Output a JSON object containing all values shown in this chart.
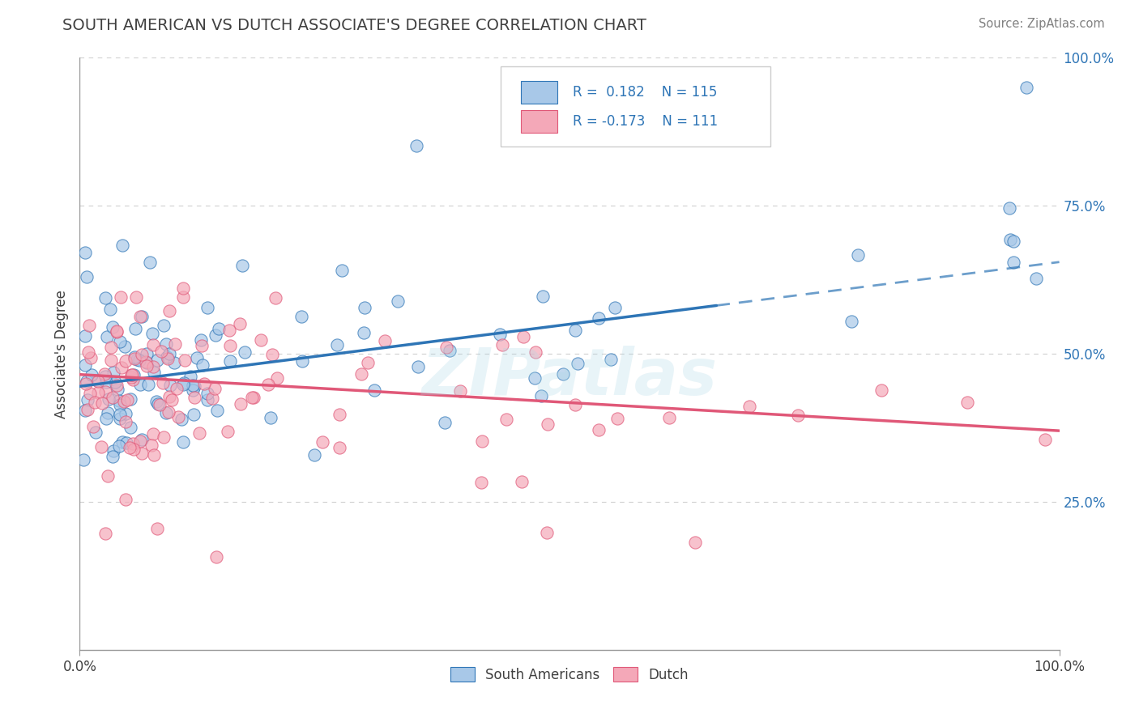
{
  "title": "SOUTH AMERICAN VS DUTCH ASSOCIATE'S DEGREE CORRELATION CHART",
  "source": "Source: ZipAtlas.com",
  "ylabel": "Associate's Degree",
  "xmin": 0.0,
  "xmax": 1.0,
  "ymin": 0.0,
  "ymax": 1.0,
  "blue_R": 0.182,
  "blue_N": 115,
  "pink_R": -0.173,
  "pink_N": 111,
  "blue_color": "#A8C8E8",
  "pink_color": "#F4A8B8",
  "blue_line_color": "#2E75B6",
  "pink_line_color": "#E05878",
  "blue_line_solid_end": 0.65,
  "blue_intercept": 0.445,
  "blue_slope": 0.21,
  "pink_intercept": 0.465,
  "pink_slope": -0.095,
  "watermark": "ZIPatlas",
  "background_color": "#FFFFFF",
  "grid_color": "#BBBBBB",
  "title_color": "#404040",
  "legend_color": "#2E75B6",
  "source_color": "#808080"
}
